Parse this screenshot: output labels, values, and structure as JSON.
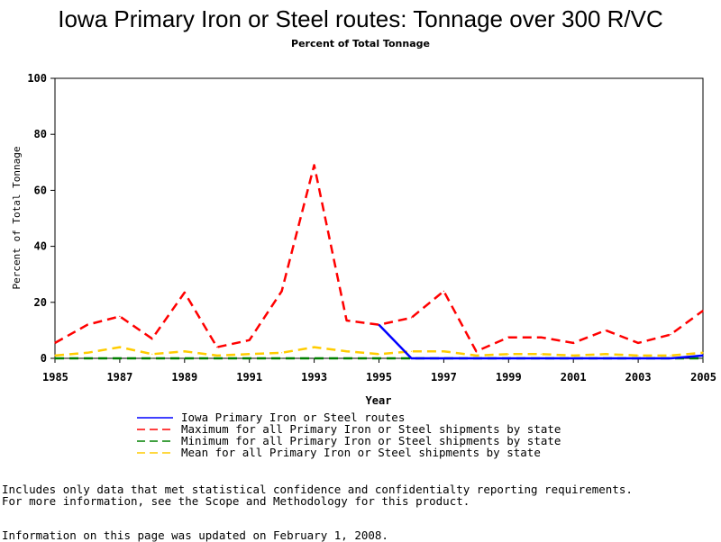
{
  "chart_data": {
    "type": "line",
    "title": "Iowa Primary Iron or Steel routes: Tonnage over 300 R/VC",
    "subtitle": "Percent of Total Tonnage",
    "xlabel": "Year",
    "ylabel": "Percent of Total Tonnage",
    "xlim": [
      1985,
      2005
    ],
    "ylim": [
      0,
      100
    ],
    "x_ticks": [
      1985,
      1987,
      1989,
      1991,
      1993,
      1995,
      1997,
      1999,
      2001,
      2003,
      2005
    ],
    "y_ticks": [
      0,
      20,
      40,
      60,
      80,
      100
    ],
    "legend_position": "bottom",
    "series": [
      {
        "name": "Iowa Primary Iron or Steel routes",
        "color": "#0000ff",
        "dash": "solid",
        "points": [
          [
            1995,
            12
          ],
          [
            1996,
            0
          ],
          [
            1997,
            0
          ],
          [
            1998,
            0
          ],
          [
            1999,
            0
          ],
          [
            2000,
            0
          ],
          [
            2001,
            0
          ],
          [
            2002,
            0
          ],
          [
            2003,
            0
          ],
          [
            2004,
            0
          ],
          [
            2005,
            1
          ]
        ]
      },
      {
        "name": "Maximum for all Primary Iron or Steel shipments by state",
        "color": "#ff0000",
        "dash": "dashed",
        "points": [
          [
            1985,
            5.5
          ],
          [
            1986,
            12
          ],
          [
            1987,
            15
          ],
          [
            1988,
            7
          ],
          [
            1989,
            23.5
          ],
          [
            1990,
            4
          ],
          [
            1991,
            6.5
          ],
          [
            1992,
            24
          ],
          [
            1993,
            69
          ],
          [
            1994,
            13.5
          ],
          [
            1995,
            12
          ],
          [
            1996,
            14.5
          ],
          [
            1997,
            24
          ],
          [
            1998,
            2.5
          ],
          [
            1999,
            7.5
          ],
          [
            2000,
            7.5
          ],
          [
            2001,
            5.5
          ],
          [
            2002,
            10
          ],
          [
            2003,
            5.5
          ],
          [
            2004,
            8.5
          ],
          [
            2005,
            17
          ]
        ]
      },
      {
        "name": "Minimum for all Primary Iron or Steel shipments by state",
        "color": "#008000",
        "dash": "dashed",
        "points": [
          [
            1985,
            0
          ],
          [
            1986,
            0
          ],
          [
            1987,
            0
          ],
          [
            1988,
            0
          ],
          [
            1989,
            0
          ],
          [
            1990,
            0
          ],
          [
            1991,
            0
          ],
          [
            1992,
            0
          ],
          [
            1993,
            0
          ],
          [
            1994,
            0
          ],
          [
            1995,
            0
          ],
          [
            1996,
            0
          ],
          [
            1997,
            0
          ],
          [
            1998,
            0
          ],
          [
            1999,
            0
          ],
          [
            2000,
            0
          ],
          [
            2001,
            0
          ],
          [
            2002,
            0
          ],
          [
            2003,
            0
          ],
          [
            2004,
            0
          ],
          [
            2005,
            0
          ]
        ]
      },
      {
        "name": "Mean for all Primary Iron or Steel shipments by state",
        "color": "#ffcc00",
        "dash": "dashed",
        "points": [
          [
            1985,
            1
          ],
          [
            1986,
            2
          ],
          [
            1987,
            4
          ],
          [
            1988,
            1.5
          ],
          [
            1989,
            2.5
          ],
          [
            1990,
            1
          ],
          [
            1991,
            1.5
          ],
          [
            1992,
            2
          ],
          [
            1993,
            4
          ],
          [
            1994,
            2.5
          ],
          [
            1995,
            1.5
          ],
          [
            1996,
            2.5
          ],
          [
            1997,
            2.5
          ],
          [
            1998,
            1
          ],
          [
            1999,
            1.5
          ],
          [
            2000,
            1.5
          ],
          [
            2001,
            1
          ],
          [
            2002,
            1.5
          ],
          [
            2003,
            1
          ],
          [
            2004,
            1
          ],
          [
            2005,
            2
          ]
        ]
      }
    ]
  },
  "footnotes": {
    "line1": "Includes only data that met statistical confidence and confidentialty reporting requirements.",
    "line2": "For more information, see the Scope and Methodology for this product.",
    "updated": "Information on this page was updated on February 1, 2008."
  }
}
